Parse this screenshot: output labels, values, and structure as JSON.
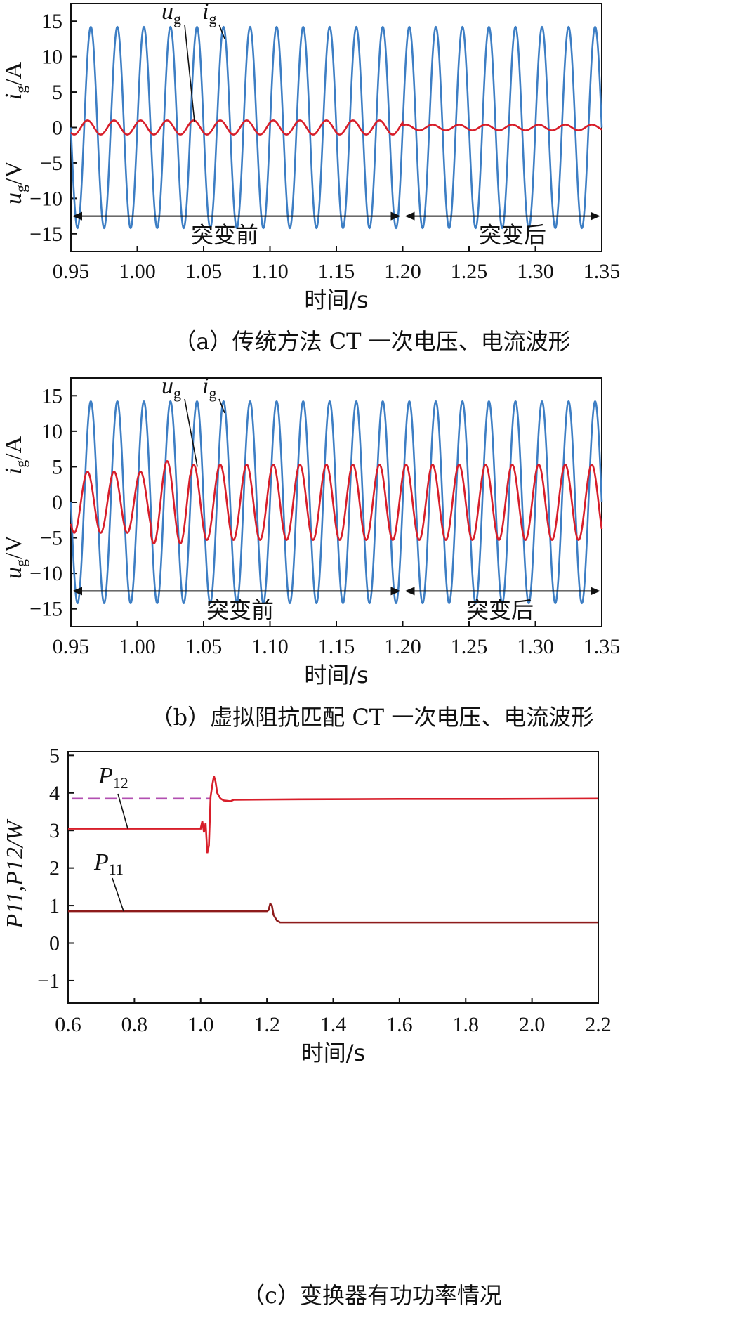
{
  "colors": {
    "current": "#3d7ec4",
    "voltage": "#d81e2a",
    "p11": "#8e1b1b",
    "p12": "#d81e2a",
    "p12_ref": "#b24fb1"
  },
  "chart_data": [
    {
      "type": "line",
      "caption": "（a）传统方法 CT 一次电压、电流波形",
      "xlabel": "时间/s",
      "ylabel_top": {
        "sym": "i",
        "sub": "g",
        "unit": "/A"
      },
      "ylabel_bottom": {
        "sym": "u",
        "sub": "g",
        "unit": "/V"
      },
      "xlim": [
        0.95,
        1.35
      ],
      "ylim": [
        -17.5,
        17.5
      ],
      "xticks": [
        "0.95",
        "1.00",
        "1.05",
        "1.10",
        "1.15",
        "1.20",
        "1.25",
        "1.30",
        "1.35"
      ],
      "yticks": [
        "15",
        "10",
        "5",
        "0",
        "−5",
        "−10",
        "−15"
      ],
      "series": [
        {
          "name": "ig",
          "label": {
            "sym": "i",
            "sub": "g"
          },
          "amplitude": 14.2,
          "frequency_hz": 50
        },
        {
          "name": "ug",
          "label": {
            "sym": "u",
            "sub": "g"
          },
          "amplitude_before": 1.0,
          "amplitude_after": 0.4,
          "frequency_hz": 50,
          "phase_lead_s": 0.0025
        }
      ],
      "event_time": 1.2,
      "annotations": {
        "before": "突变前",
        "after": "突变后",
        "arrow_y": -12.5
      }
    },
    {
      "type": "line",
      "caption": "（b）虚拟阻抗匹配 CT 一次电压、电流波形",
      "xlabel": "时间/s",
      "ylabel_top": {
        "sym": "i",
        "sub": "g",
        "unit": "/A"
      },
      "ylabel_bottom": {
        "sym": "u",
        "sub": "g",
        "unit": "/V"
      },
      "xlim": [
        0.95,
        1.35
      ],
      "ylim": [
        -17.5,
        17.5
      ],
      "xticks": [
        "0.95",
        "1.00",
        "1.05",
        "1.10",
        "1.15",
        "1.20",
        "1.25",
        "1.30",
        "1.35"
      ],
      "yticks": [
        "15",
        "10",
        "5",
        "0",
        "−5",
        "−10",
        "−15"
      ],
      "series": [
        {
          "name": "ig",
          "label": {
            "sym": "i",
            "sub": "g"
          },
          "amplitude": 14.2,
          "frequency_hz": 50
        },
        {
          "name": "ug",
          "label": {
            "sym": "u",
            "sub": "g"
          },
          "amplitude_before": 4.3,
          "amplitude_transient": 5.8,
          "amplitude_after": 5.3,
          "frequency_hz": 50,
          "phase_lead_s": 0.0025
        }
      ],
      "event_time": 1.2,
      "annotations": {
        "before": "突变前",
        "after": "突变后",
        "arrow_y": -12.5
      }
    },
    {
      "type": "line",
      "caption": "（c）变换器有功功率情况",
      "xlabel": "时间/s",
      "ylabel": "P11,P12/W",
      "xlim": [
        0.6,
        2.2
      ],
      "ylim": [
        -1.6,
        5.1
      ],
      "xticks": [
        "0.6",
        "0.8",
        "1.0",
        "1.2",
        "1.4",
        "1.6",
        "1.8",
        "2.0",
        "2.2"
      ],
      "yticks": [
        "5",
        "4",
        "3",
        "2",
        "1",
        "0",
        "−1"
      ],
      "series": [
        {
          "name": "P12",
          "label": {
            "sym": "P",
            "sub": "12"
          },
          "points": [
            [
              0.6,
              3.05
            ],
            [
              1.0,
              3.05
            ],
            [
              1.005,
              3.25
            ],
            [
              1.01,
              2.95
            ],
            [
              1.015,
              3.2
            ],
            [
              1.02,
              2.4
            ],
            [
              1.025,
              2.6
            ],
            [
              1.03,
              3.9
            ],
            [
              1.035,
              4.2
            ],
            [
              1.04,
              4.45
            ],
            [
              1.045,
              4.3
            ],
            [
              1.05,
              4.0
            ],
            [
              1.06,
              3.85
            ],
            [
              1.07,
              3.8
            ],
            [
              1.09,
              3.78
            ],
            [
              1.1,
              3.82
            ],
            [
              1.3,
              3.83
            ],
            [
              1.6,
              3.84
            ],
            [
              1.9,
              3.84
            ],
            [
              2.2,
              3.85
            ]
          ]
        },
        {
          "name": "P12 reference",
          "reference": 3.85
        },
        {
          "name": "P11",
          "label": {
            "sym": "P",
            "sub": "11"
          },
          "points": [
            [
              0.6,
              0.85
            ],
            [
              1.2,
              0.85
            ],
            [
              1.205,
              0.88
            ],
            [
              1.21,
              1.05
            ],
            [
              1.215,
              1.0
            ],
            [
              1.22,
              0.75
            ],
            [
              1.23,
              0.6
            ],
            [
              1.24,
              0.55
            ],
            [
              2.2,
              0.55
            ]
          ]
        }
      ]
    }
  ]
}
